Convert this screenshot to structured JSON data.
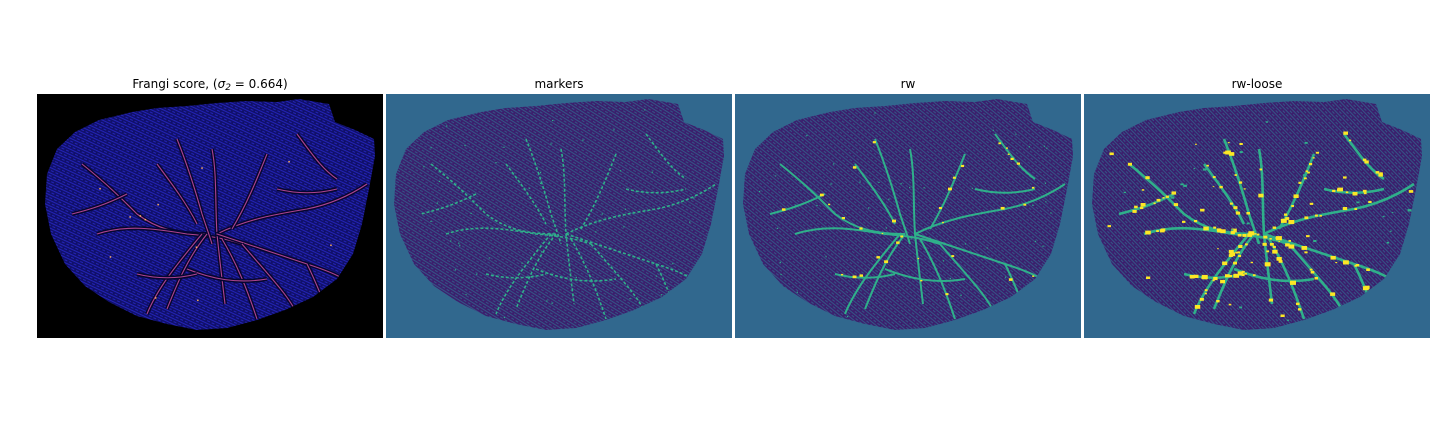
{
  "panels": [
    {
      "id": "frangi",
      "title_prefix": "Frangi score, (",
      "sigma_symbol": "σ",
      "sigma_subscript": "2",
      "sigma_value": " = 0.664)",
      "background": "#000000",
      "fill": "#10106a",
      "texture": "#2a2ad0",
      "vessel": "#c04a9a",
      "vessel_hot": "#ffb060"
    },
    {
      "id": "markers",
      "title": "markers",
      "background": "#31688e",
      "fill": "#3b1f6d",
      "texture": "#31688e",
      "vessel": "#2fb08a"
    },
    {
      "id": "rw",
      "title": "rw",
      "background": "#31688e",
      "fill": "#3b1f6d",
      "texture": "#31688e",
      "vessel": "#2fb08a",
      "highlight": "#fde725"
    },
    {
      "id": "rw-loose",
      "title": "rw-loose",
      "background": "#31688e",
      "fill": "#3b1f6d",
      "texture": "#31688e",
      "vessel": "#2fb08a",
      "highlight": "#fde725"
    }
  ]
}
